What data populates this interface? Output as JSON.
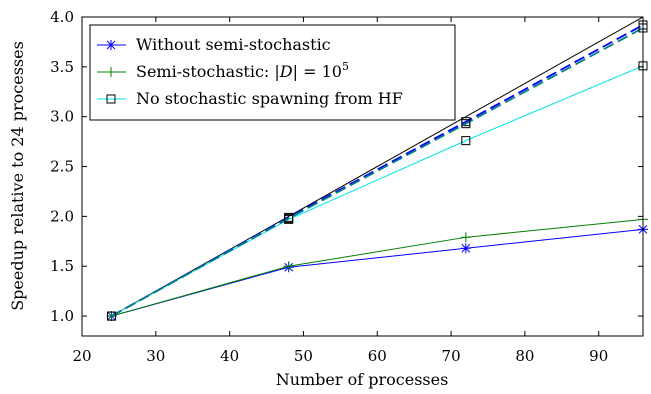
{
  "chart_data": {
    "type": "line",
    "xlabel": "Number of processes",
    "ylabel": "Speedup relative to 24 processes",
    "xlim": [
      20,
      96
    ],
    "ylim": [
      0.8,
      4.0
    ],
    "xticks": [
      "20",
      "30",
      "40",
      "50",
      "60",
      "70",
      "80",
      "90"
    ],
    "yticks": [
      "1.0",
      "1.5",
      "2.0",
      "2.5",
      "3.0",
      "3.5",
      "4.0"
    ],
    "grid": false,
    "legend_position": "top-left",
    "ideal_line": {
      "x": [
        24,
        96
      ],
      "y": [
        1.0,
        4.0
      ],
      "color": "#000000"
    },
    "series": [
      {
        "name": "Without semi-stochastic",
        "marker": "x",
        "color": "#0000ff",
        "linestyle": "solid",
        "x": [
          24,
          48,
          72,
          96
        ],
        "y": [
          1.0,
          1.49,
          1.68,
          1.87
        ]
      },
      {
        "name": "Semi-stochastic: |D| = 10^5",
        "marker": "+",
        "color": "#008000",
        "linestyle": "solid",
        "x": [
          24,
          48,
          72,
          96
        ],
        "y": [
          1.0,
          1.5,
          1.79,
          1.97
        ]
      },
      {
        "name": "No stochastic spawning from HF",
        "marker": "square",
        "color": "#00e5e5",
        "linestyle": "solid",
        "x": [
          24,
          48,
          72,
          96
        ],
        "y": [
          1.0,
          1.97,
          2.76,
          3.51
        ]
      },
      {
        "color": "#0000ff",
        "linestyle": "dashed",
        "marker": "square",
        "x": [
          24,
          48,
          72,
          96
        ],
        "y": [
          1.0,
          1.99,
          2.95,
          3.92
        ]
      },
      {
        "color": "#008080",
        "linestyle": "dashed",
        "marker": "square",
        "x": [
          24,
          48,
          72,
          96
        ],
        "y": [
          1.0,
          1.98,
          2.93,
          3.89
        ]
      }
    ]
  },
  "legend": {
    "item1": {
      "text": "Without semi-stochastic"
    },
    "item2": {
      "text_prefix": "Semi-stochastic: ",
      "math_var": "D",
      "math_eq": " = 10",
      "exponent": "5"
    },
    "item3": {
      "text": "No stochastic spawning from HF"
    }
  }
}
